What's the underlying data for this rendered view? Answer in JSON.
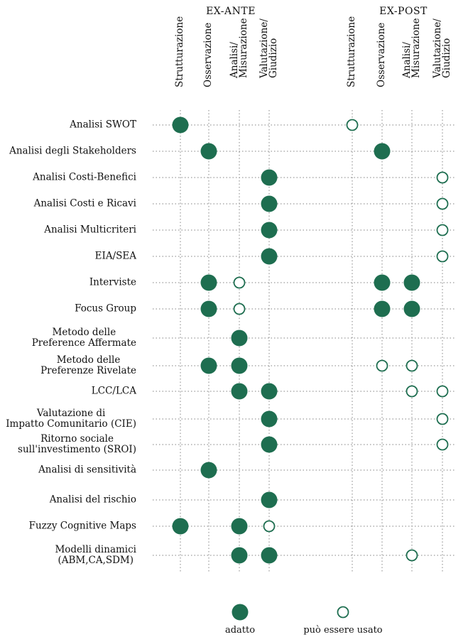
{
  "colors": {
    "filled": "#1e6e50",
    "outline": "#1e6e50",
    "grid": "#9a9a9a"
  },
  "groups": [
    {
      "id": "ex-ante",
      "title": "EX-ANTE"
    },
    {
      "id": "ex-post",
      "title": "EX-POST"
    }
  ],
  "columns": [
    {
      "group": "ex-ante",
      "label": "Strutturazione"
    },
    {
      "group": "ex-ante",
      "label": "Osservazione"
    },
    {
      "group": "ex-ante",
      "label": "Analisi/\nMisurazione"
    },
    {
      "group": "ex-ante",
      "label": "Valutazione/\nGiudizio"
    },
    {
      "group": "ex-post",
      "label": "Strutturazione"
    },
    {
      "group": "ex-post",
      "label": "Osservazione"
    },
    {
      "group": "ex-post",
      "label": "Analisi/\nMisurazione"
    },
    {
      "group": "ex-post",
      "label": "Valutazione/\nGiudizio"
    }
  ],
  "rows": [
    {
      "label": "Analisi SWOT",
      "marks": [
        "F",
        "",
        "",
        "",
        "O",
        "",
        "",
        ""
      ]
    },
    {
      "label": "Analisi degli Stakeholders",
      "marks": [
        "",
        "F",
        "",
        "",
        "",
        "F",
        "",
        ""
      ]
    },
    {
      "label": "Analisi Costi-Benefici",
      "marks": [
        "",
        "",
        "",
        "F",
        "",
        "",
        "",
        "O"
      ]
    },
    {
      "label": "Analisi Costi e Ricavi",
      "marks": [
        "",
        "",
        "",
        "F",
        "",
        "",
        "",
        "O"
      ]
    },
    {
      "label": "Analisi Multicriteri",
      "marks": [
        "",
        "",
        "",
        "F",
        "",
        "",
        "",
        "O"
      ]
    },
    {
      "label": "EIA/SEA",
      "marks": [
        "",
        "",
        "",
        "F",
        "",
        "",
        "",
        "O"
      ]
    },
    {
      "label": "Interviste",
      "marks": [
        "",
        "F",
        "O",
        "",
        "",
        "F",
        "F",
        ""
      ]
    },
    {
      "label": "Focus Group",
      "marks": [
        "",
        "F",
        "O",
        "",
        "",
        "F",
        "F",
        ""
      ]
    },
    {
      "label": "Metodo delle\nPreference Affermate",
      "marks": [
        "",
        "",
        "F",
        "",
        "",
        "",
        "",
        ""
      ]
    },
    {
      "label": "Metodo delle\nPreferenze Rivelate",
      "marks": [
        "",
        "F",
        "F",
        "",
        "",
        "O",
        "O",
        ""
      ]
    },
    {
      "label": "LCC/LCA",
      "marks": [
        "",
        "",
        "F",
        "F",
        "",
        "",
        "O",
        "O"
      ]
    },
    {
      "label": "Valutazione di\nImpatto Comunitario (CIE)",
      "marks": [
        "",
        "",
        "",
        "F",
        "",
        "",
        "",
        "O"
      ]
    },
    {
      "label": "Ritorno sociale\nsull'investimento (SROI)",
      "marks": [
        "",
        "",
        "",
        "F",
        "",
        "",
        "",
        "O"
      ]
    },
    {
      "label": "Analisi di sensitività",
      "marks": [
        "",
        "F",
        "",
        "",
        "",
        "",
        "",
        ""
      ]
    },
    {
      "label": "Analisi del rischio",
      "marks": [
        "",
        "",
        "",
        "F",
        "",
        "",
        "",
        ""
      ]
    },
    {
      "label": "Fuzzy Cognitive Maps",
      "marks": [
        "F",
        "",
        "F",
        "O",
        "",
        "",
        "",
        ""
      ]
    },
    {
      "label": "Modelli dinamici\n(ABM,CA,SDM)",
      "marks": [
        "",
        "",
        "F",
        "F",
        "",
        "",
        "O",
        ""
      ]
    }
  ],
  "legend": {
    "filled_label": "adatto",
    "outline_label": "può essere usato"
  }
}
